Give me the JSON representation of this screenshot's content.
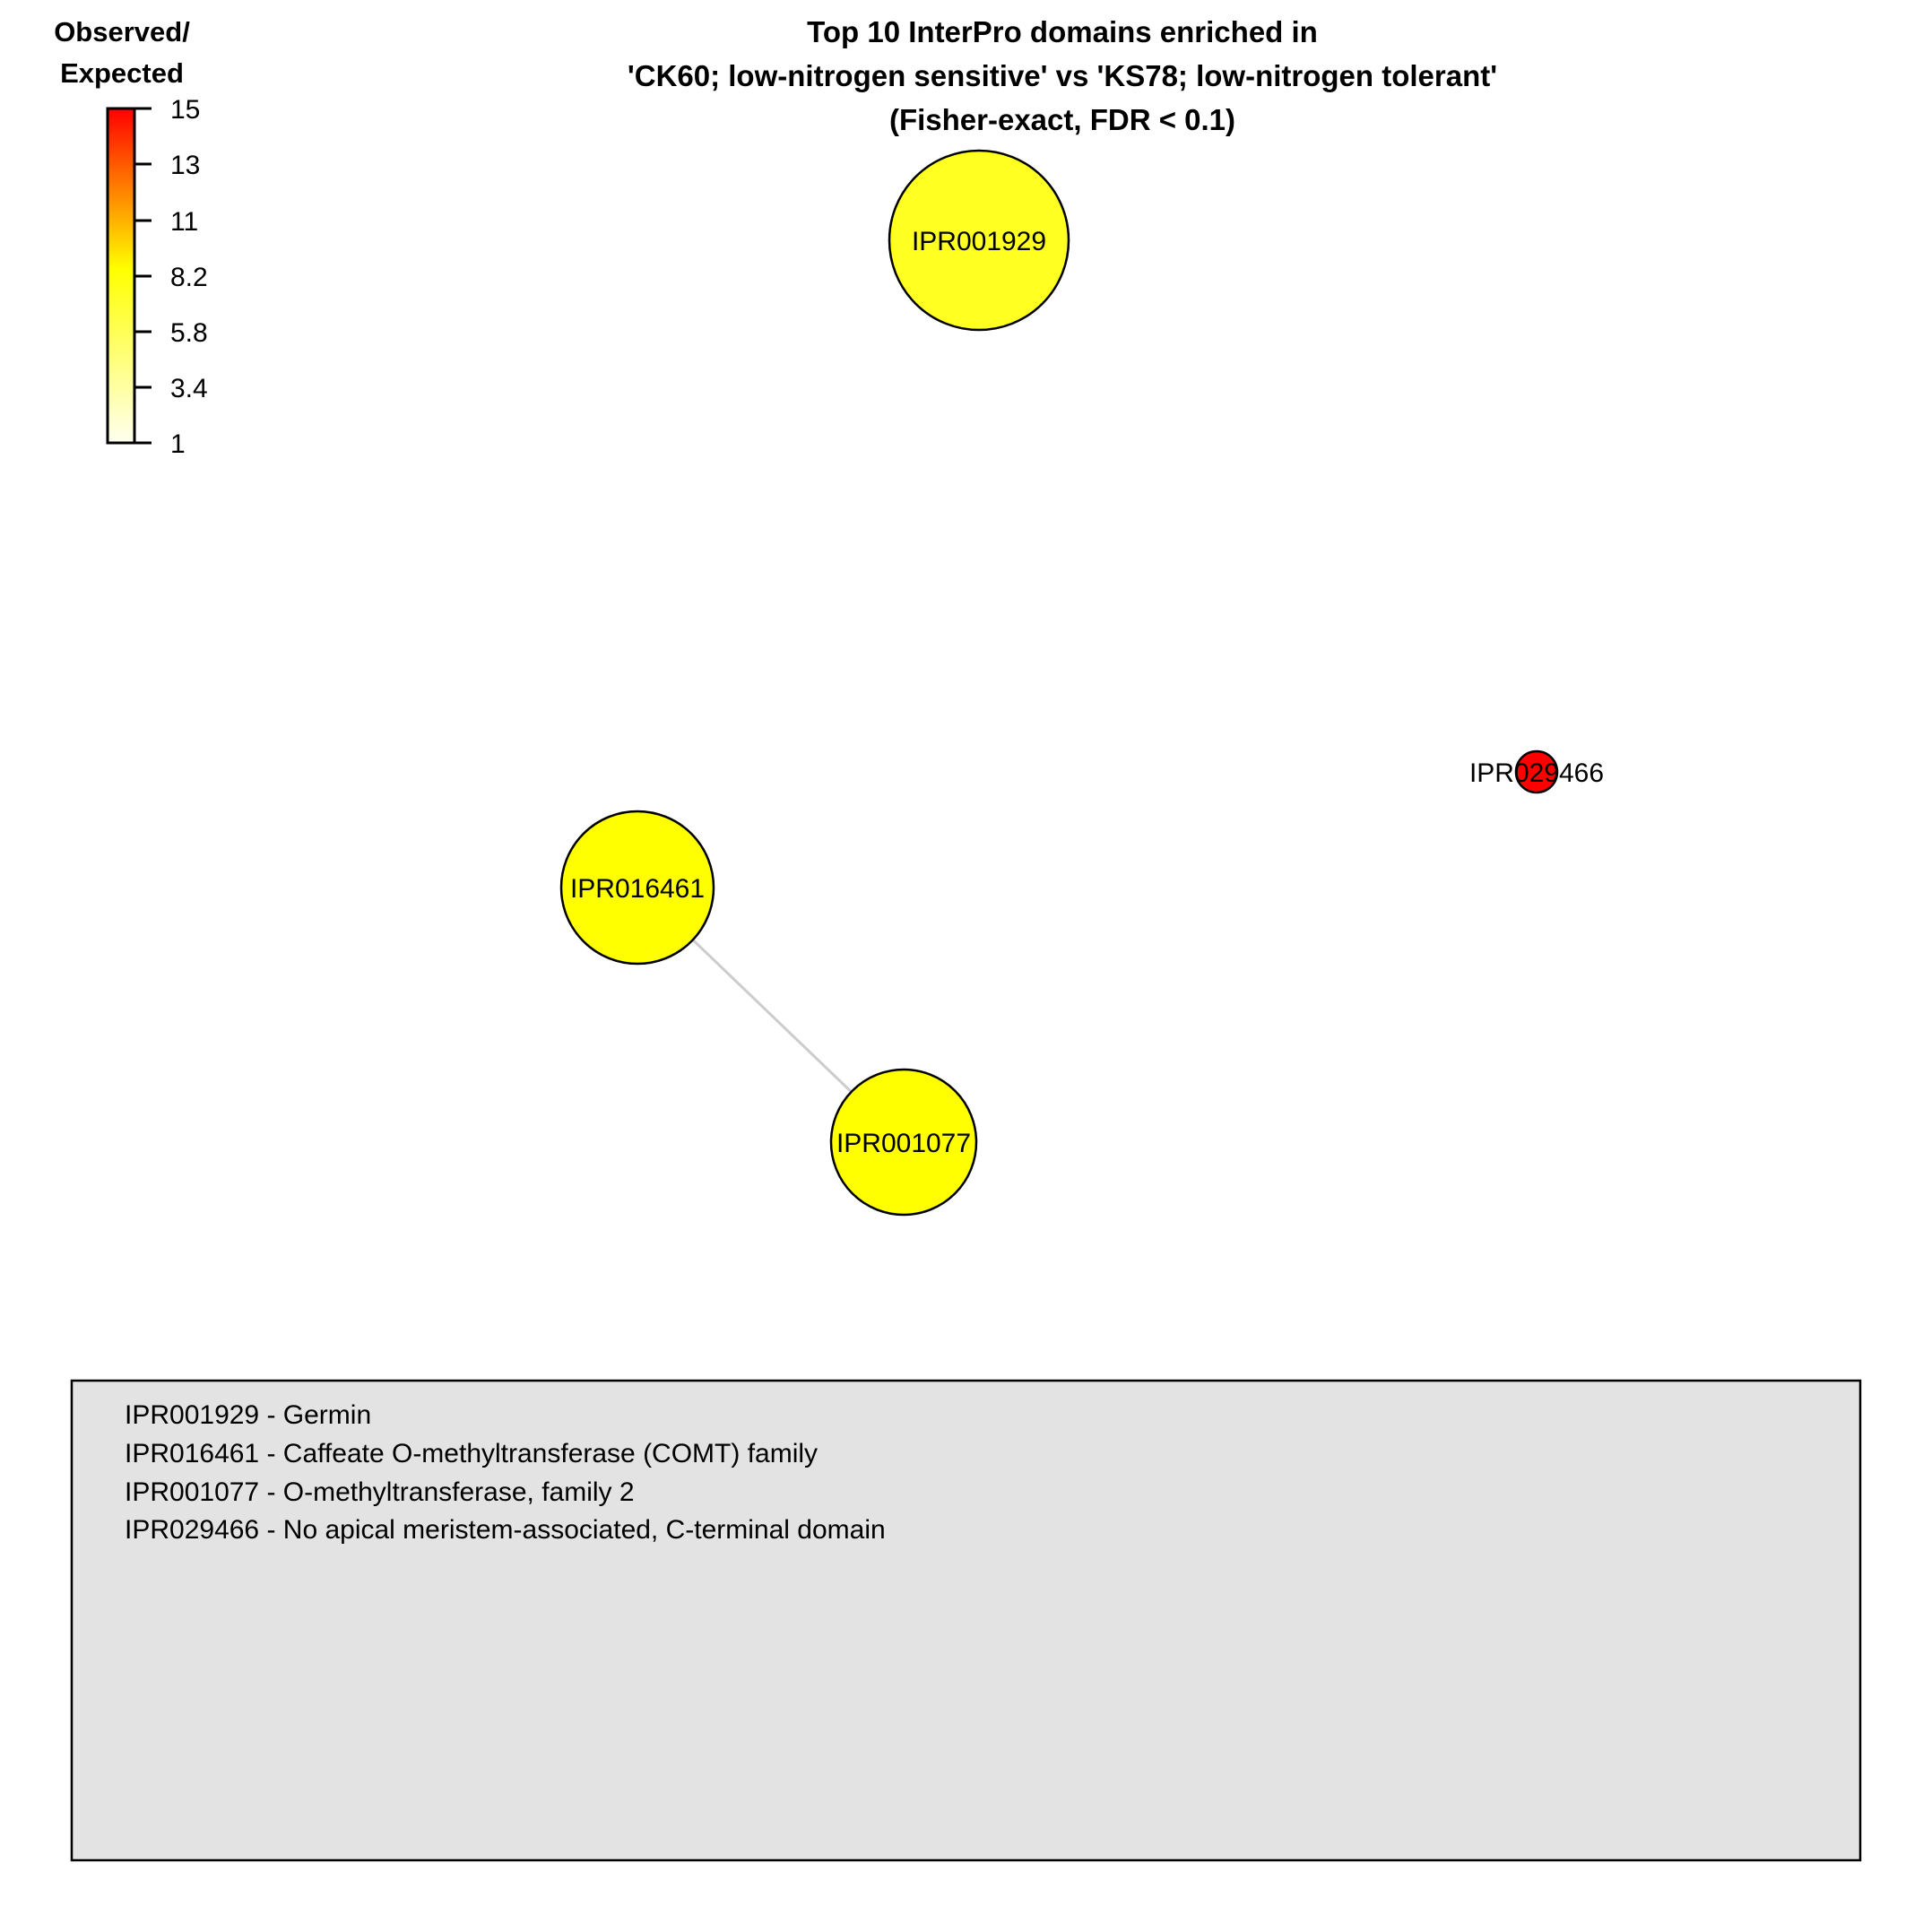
{
  "title": {
    "lines": [
      "Top 10 InterPro domains enriched in",
      "'CK60; low-nitrogen sensitive' vs 'KS78; low-nitrogen tolerant'",
      "(Fisher-exact, FDR < 0.1)"
    ]
  },
  "color_scale": {
    "title_lines": [
      "Observed/",
      "Expected"
    ],
    "min": 1,
    "max": 15,
    "ticks": [
      "15",
      "13",
      "11",
      "8.2",
      "5.8",
      "3.4",
      "1"
    ],
    "low_color": "#FFFFF0",
    "mid_color": "#FFFF00",
    "high_color": "#FF0000"
  },
  "nodes": [
    {
      "id": "IPR001929",
      "label": "IPR001929",
      "color": "#FFFF22"
    },
    {
      "id": "IPR016461",
      "label": "IPR016461",
      "color": "#FFFF00"
    },
    {
      "id": "IPR001077",
      "label": "IPR001077",
      "color": "#FFFF00"
    },
    {
      "id": "IPR029466",
      "label": "IPR029466",
      "color": "#FF0000"
    }
  ],
  "edges": [
    {
      "source": "IPR016461",
      "target": "IPR001077",
      "color": "#CCCCCC"
    }
  ],
  "legend": {
    "entries": [
      "IPR001929 - Germin",
      "IPR016461 - Caffeate O-methyltransferase (COMT) family",
      "IPR001077 - O-methyltransferase, family 2",
      "IPR029466 - No apical meristem-associated, C-terminal domain"
    ],
    "background": "#E3E3E3"
  }
}
